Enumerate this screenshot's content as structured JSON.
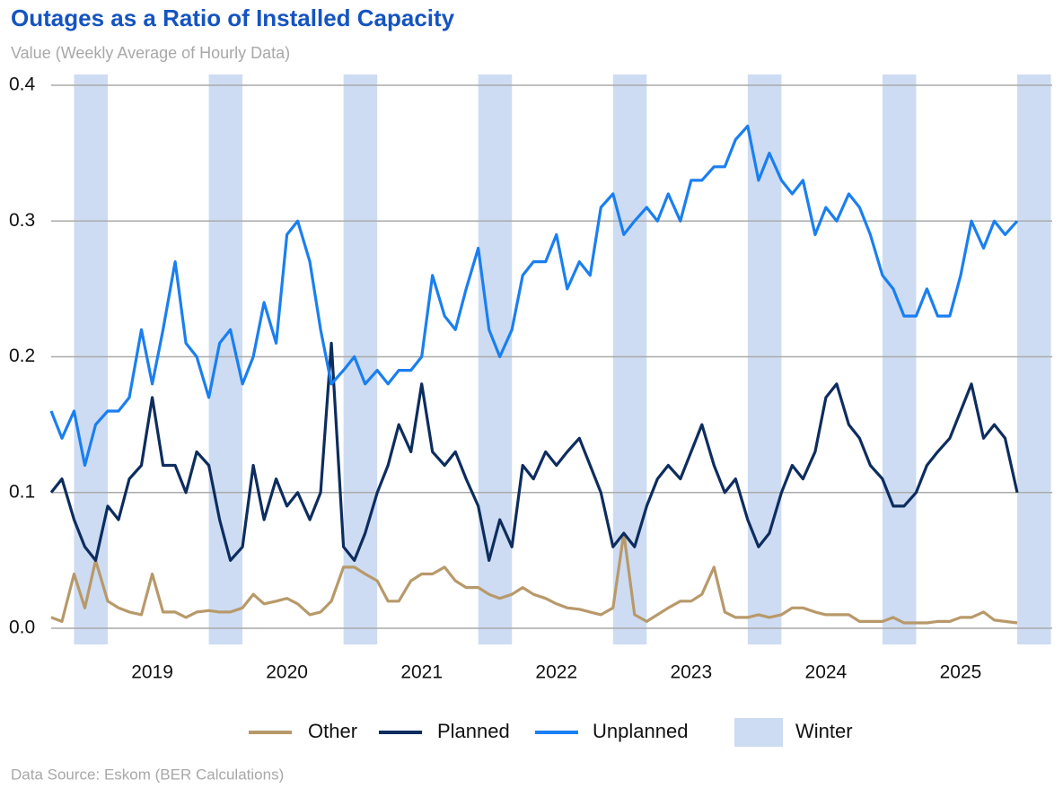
{
  "chart_data": {
    "type": "line",
    "title": "Outages as a Ratio of Installed Capacity",
    "subtitle": "Value (Weekly Average of Hourly Data)",
    "source": "Data Source: Eskom (BER Calculations)",
    "x": [
      2018.25,
      2018.33,
      2018.42,
      2018.5,
      2018.58,
      2018.67,
      2018.75,
      2018.83,
      2018.92,
      2019.0,
      2019.08,
      2019.17,
      2019.25,
      2019.33,
      2019.42,
      2019.5,
      2019.58,
      2019.67,
      2019.75,
      2019.83,
      2019.92,
      2020.0,
      2020.08,
      2020.17,
      2020.25,
      2020.33,
      2020.42,
      2020.5,
      2020.58,
      2020.67,
      2020.75,
      2020.83,
      2020.92,
      2021.0,
      2021.08,
      2021.17,
      2021.25,
      2021.33,
      2021.42,
      2021.5,
      2021.58,
      2021.67,
      2021.75,
      2021.83,
      2021.92,
      2022.0,
      2022.08,
      2022.17,
      2022.25,
      2022.33,
      2022.42,
      2022.5,
      2022.58,
      2022.67,
      2022.75,
      2022.83,
      2022.92,
      2023.0,
      2023.08,
      2023.17,
      2023.25,
      2023.33,
      2023.42,
      2023.5,
      2023.58,
      2023.67,
      2023.75,
      2023.83,
      2023.92,
      2024.0,
      2024.08,
      2024.17,
      2024.25,
      2024.33,
      2024.42,
      2024.5,
      2024.58,
      2024.67,
      2024.75,
      2024.83,
      2024.92,
      2025.0,
      2025.08,
      2025.17,
      2025.25,
      2025.33,
      2025.42
    ],
    "series": [
      {
        "name": "Other",
        "color": "#b8996a",
        "values": [
          0.008,
          0.005,
          0.04,
          0.015,
          0.05,
          0.02,
          0.015,
          0.012,
          0.01,
          0.04,
          0.012,
          0.012,
          0.008,
          0.012,
          0.013,
          0.012,
          0.012,
          0.015,
          0.025,
          0.018,
          0.02,
          0.022,
          0.018,
          0.01,
          0.012,
          0.02,
          0.045,
          0.045,
          0.04,
          0.035,
          0.02,
          0.02,
          0.035,
          0.04,
          0.04,
          0.045,
          0.035,
          0.03,
          0.03,
          0.025,
          0.022,
          0.025,
          0.03,
          0.025,
          0.022,
          0.018,
          0.015,
          0.014,
          0.012,
          0.01,
          0.015,
          0.07,
          0.01,
          0.005,
          0.01,
          0.015,
          0.02,
          0.02,
          0.025,
          0.045,
          0.012,
          0.008,
          0.008,
          0.01,
          0.008,
          0.01,
          0.015,
          0.015,
          0.012,
          0.01,
          0.01,
          0.01,
          0.005,
          0.005,
          0.005,
          0.008,
          0.004,
          0.004,
          0.004,
          0.005,
          0.005,
          0.008,
          0.008,
          0.012,
          0.006,
          0.005,
          0.004
        ]
      },
      {
        "name": "Planned",
        "color": "#0d2d5e",
        "values": [
          0.1,
          0.11,
          0.08,
          0.06,
          0.05,
          0.09,
          0.08,
          0.11,
          0.12,
          0.17,
          0.12,
          0.12,
          0.1,
          0.13,
          0.12,
          0.08,
          0.05,
          0.06,
          0.12,
          0.08,
          0.11,
          0.09,
          0.1,
          0.08,
          0.1,
          0.21,
          0.06,
          0.05,
          0.07,
          0.1,
          0.12,
          0.15,
          0.13,
          0.18,
          0.13,
          0.12,
          0.13,
          0.11,
          0.09,
          0.05,
          0.08,
          0.06,
          0.12,
          0.11,
          0.13,
          0.12,
          0.13,
          0.14,
          0.12,
          0.1,
          0.06,
          0.07,
          0.06,
          0.09,
          0.11,
          0.12,
          0.11,
          0.13,
          0.15,
          0.12,
          0.1,
          0.11,
          0.08,
          0.06,
          0.07,
          0.1,
          0.12,
          0.11,
          0.13,
          0.17,
          0.18,
          0.15,
          0.14,
          0.12,
          0.11,
          0.09,
          0.09,
          0.1,
          0.12,
          0.13,
          0.14,
          0.16,
          0.18,
          0.14,
          0.15,
          0.14,
          0.1
        ]
      },
      {
        "name": "Unplanned",
        "color": "#1a7ff0",
        "values": [
          0.16,
          0.14,
          0.16,
          0.12,
          0.15,
          0.16,
          0.16,
          0.17,
          0.22,
          0.18,
          0.22,
          0.27,
          0.21,
          0.2,
          0.17,
          0.21,
          0.22,
          0.18,
          0.2,
          0.24,
          0.21,
          0.29,
          0.3,
          0.27,
          0.22,
          0.18,
          0.19,
          0.2,
          0.18,
          0.19,
          0.18,
          0.19,
          0.19,
          0.2,
          0.26,
          0.23,
          0.22,
          0.25,
          0.28,
          0.22,
          0.2,
          0.22,
          0.26,
          0.27,
          0.27,
          0.29,
          0.25,
          0.27,
          0.26,
          0.31,
          0.32,
          0.29,
          0.3,
          0.31,
          0.3,
          0.32,
          0.3,
          0.33,
          0.33,
          0.34,
          0.34,
          0.36,
          0.37,
          0.33,
          0.35,
          0.33,
          0.32,
          0.33,
          0.29,
          0.31,
          0.3,
          0.32,
          0.31,
          0.29,
          0.26,
          0.25,
          0.23,
          0.23,
          0.25,
          0.23,
          0.23,
          0.26,
          0.3,
          0.28,
          0.3,
          0.29,
          0.3
        ]
      }
    ],
    "winter": {
      "name": "Winter",
      "color": "#cddcf3",
      "ranges": [
        [
          2018.42,
          2018.67
        ],
        [
          2019.42,
          2019.67
        ],
        [
          2020.42,
          2020.67
        ],
        [
          2021.42,
          2021.67
        ],
        [
          2022.42,
          2022.67
        ],
        [
          2023.42,
          2023.67
        ],
        [
          2024.42,
          2024.67
        ],
        [
          2025.42,
          2025.67
        ]
      ]
    },
    "xlim": [
      2018.25,
      2025.68
    ],
    "xticks": [
      2019,
      2020,
      2021,
      2022,
      2023,
      2024,
      2025
    ],
    "ylim": [
      0,
      0.4
    ],
    "yticks": [
      {
        "value": 0,
        "label": "0.0"
      },
      0.1,
      0.2,
      0.3,
      0.4
    ],
    "grid": true,
    "legend": "bottom"
  }
}
